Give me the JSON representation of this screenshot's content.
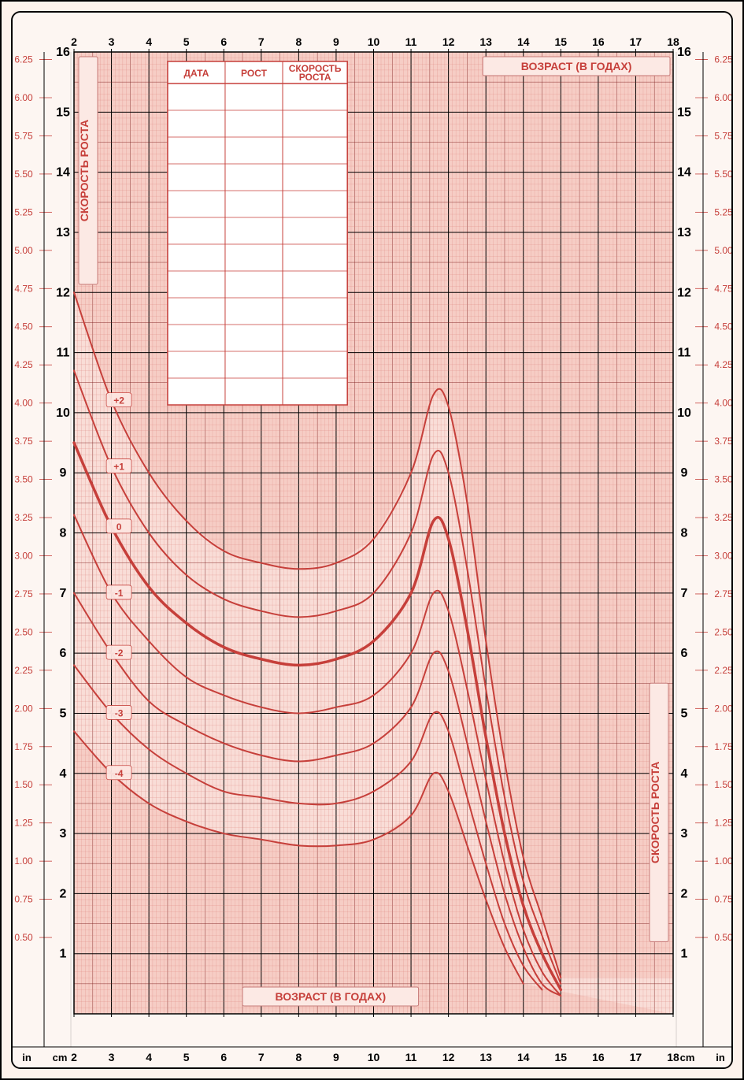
{
  "chart": {
    "type": "line",
    "background_color": "#fdf2eb",
    "plot_background": "#f5c9c1",
    "grid_minor_color": "#d97a74",
    "grid_major_color": "#000000",
    "grid_mid_color": "#7c1b1b",
    "curve_color": "#c63f3a",
    "curve_thick_color": "#c63f3a",
    "x": {
      "label": "ВОЗРАСТ (В ГОДАХ)",
      "min": 2,
      "max": 18,
      "ticks": [
        2,
        3,
        4,
        5,
        6,
        7,
        8,
        9,
        10,
        11,
        12,
        13,
        14,
        15,
        16,
        17,
        18
      ]
    },
    "y_cm": {
      "label": "СКОРОСТЬ РОСТА",
      "unit": "cm",
      "min": 0,
      "max": 16,
      "ticks": [
        1,
        2,
        3,
        4,
        5,
        6,
        7,
        8,
        9,
        10,
        11,
        12,
        13,
        14,
        15,
        16
      ]
    },
    "y_in": {
      "unit": "in",
      "min": 0.5,
      "max": 6.25,
      "ticks": [
        0.5,
        0.75,
        1.0,
        1.25,
        1.5,
        1.75,
        2.0,
        2.25,
        2.5,
        2.75,
        3.0,
        3.25,
        3.5,
        3.75,
        4.0,
        4.25,
        4.5,
        4.75,
        5.0,
        5.25,
        5.5,
        5.75,
        6.0,
        6.25
      ]
    },
    "curves": [
      {
        "label": "+2",
        "thick": false,
        "pts": [
          [
            2,
            12.0
          ],
          [
            3,
            10.2
          ],
          [
            4,
            9.0
          ],
          [
            5,
            8.2
          ],
          [
            6,
            7.7
          ],
          [
            7,
            7.5
          ],
          [
            8,
            7.4
          ],
          [
            9,
            7.5
          ],
          [
            10,
            7.9
          ],
          [
            11,
            9.0
          ],
          [
            11.6,
            10.3
          ],
          [
            12,
            10.1
          ],
          [
            12.5,
            8.5
          ],
          [
            13,
            6.2
          ],
          [
            13.5,
            4.2
          ],
          [
            14,
            2.6
          ],
          [
            14.5,
            1.6
          ],
          [
            15,
            0.6
          ]
        ]
      },
      {
        "label": "+1",
        "thick": false,
        "pts": [
          [
            2,
            10.7
          ],
          [
            3,
            9.1
          ],
          [
            4,
            8.0
          ],
          [
            5,
            7.3
          ],
          [
            6,
            6.9
          ],
          [
            7,
            6.7
          ],
          [
            8,
            6.6
          ],
          [
            9,
            6.7
          ],
          [
            10,
            7.0
          ],
          [
            11,
            8.0
          ],
          [
            11.6,
            9.3
          ],
          [
            12,
            9.0
          ],
          [
            12.5,
            7.4
          ],
          [
            13,
            5.4
          ],
          [
            13.5,
            3.6
          ],
          [
            14,
            2.2
          ],
          [
            14.5,
            1.3
          ],
          [
            15,
            0.5
          ]
        ]
      },
      {
        "label": "0",
        "thick": true,
        "pts": [
          [
            2,
            9.5
          ],
          [
            3,
            8.1
          ],
          [
            4,
            7.1
          ],
          [
            5,
            6.5
          ],
          [
            6,
            6.1
          ],
          [
            7,
            5.9
          ],
          [
            8,
            5.8
          ],
          [
            9,
            5.9
          ],
          [
            10,
            6.2
          ],
          [
            11,
            7.0
          ],
          [
            11.6,
            8.2
          ],
          [
            12,
            7.9
          ],
          [
            12.5,
            6.4
          ],
          [
            13,
            4.6
          ],
          [
            13.5,
            3.0
          ],
          [
            14,
            1.8
          ],
          [
            14.5,
            1.0
          ],
          [
            15,
            0.4
          ]
        ]
      },
      {
        "label": "-1",
        "thick": false,
        "pts": [
          [
            2,
            8.3
          ],
          [
            3,
            7.0
          ],
          [
            4,
            6.2
          ],
          [
            5,
            5.6
          ],
          [
            6,
            5.3
          ],
          [
            7,
            5.1
          ],
          [
            8,
            5.0
          ],
          [
            9,
            5.1
          ],
          [
            10,
            5.3
          ],
          [
            11,
            6.0
          ],
          [
            11.6,
            7.0
          ],
          [
            12,
            6.7
          ],
          [
            12.5,
            5.4
          ],
          [
            13,
            3.9
          ],
          [
            13.5,
            2.5
          ],
          [
            14,
            1.4
          ],
          [
            14.5,
            0.7
          ],
          [
            15,
            0.3
          ]
        ]
      },
      {
        "label": "-2",
        "thick": false,
        "pts": [
          [
            2,
            7.0
          ],
          [
            3,
            6.0
          ],
          [
            4,
            5.2
          ],
          [
            5,
            4.8
          ],
          [
            6,
            4.5
          ],
          [
            7,
            4.3
          ],
          [
            8,
            4.2
          ],
          [
            9,
            4.3
          ],
          [
            10,
            4.5
          ],
          [
            11,
            5.1
          ],
          [
            11.6,
            6.0
          ],
          [
            12,
            5.7
          ],
          [
            12.5,
            4.5
          ],
          [
            13,
            3.2
          ],
          [
            13.5,
            2.0
          ],
          [
            14,
            1.1
          ],
          [
            14.5,
            0.5
          ],
          [
            15,
            0.3
          ]
        ]
      },
      {
        "label": "-3",
        "thick": false,
        "pts": [
          [
            2,
            5.8
          ],
          [
            3,
            5.0
          ],
          [
            4,
            4.4
          ],
          [
            5,
            4.0
          ],
          [
            6,
            3.7
          ],
          [
            7,
            3.6
          ],
          [
            8,
            3.5
          ],
          [
            9,
            3.5
          ],
          [
            10,
            3.7
          ],
          [
            11,
            4.2
          ],
          [
            11.6,
            5.0
          ],
          [
            12,
            4.7
          ],
          [
            12.5,
            3.6
          ],
          [
            13,
            2.5
          ],
          [
            13.5,
            1.5
          ],
          [
            14,
            0.8
          ],
          [
            14.5,
            0.4
          ]
        ]
      },
      {
        "label": "-4",
        "thick": false,
        "pts": [
          [
            2,
            4.7
          ],
          [
            3,
            4.0
          ],
          [
            4,
            3.5
          ],
          [
            5,
            3.2
          ],
          [
            6,
            3.0
          ],
          [
            7,
            2.9
          ],
          [
            8,
            2.8
          ],
          [
            9,
            2.8
          ],
          [
            10,
            2.9
          ],
          [
            11,
            3.3
          ],
          [
            11.6,
            4.0
          ],
          [
            12,
            3.7
          ],
          [
            12.5,
            2.8
          ],
          [
            13,
            1.9
          ],
          [
            13.5,
            1.1
          ],
          [
            14,
            0.5
          ]
        ]
      }
    ]
  },
  "data_table": {
    "columns": [
      "ДАТА",
      "РОСТ",
      "СКОРОСТЬ РОСТА"
    ],
    "rows": 12,
    "background": "#ffffff",
    "border_color": "#c63f3a"
  },
  "labels": {
    "top_axis": "ВОЗРАСТ (В ГОДАХ)",
    "bottom_axis": "ВОЗРАСТ (В ГОДАХ)",
    "left_axis": "СКОРОСТЬ РОСТА",
    "right_axis": "СКОРОСТЬ РОСТА",
    "unit_cm": "cm",
    "unit_in": "in"
  }
}
